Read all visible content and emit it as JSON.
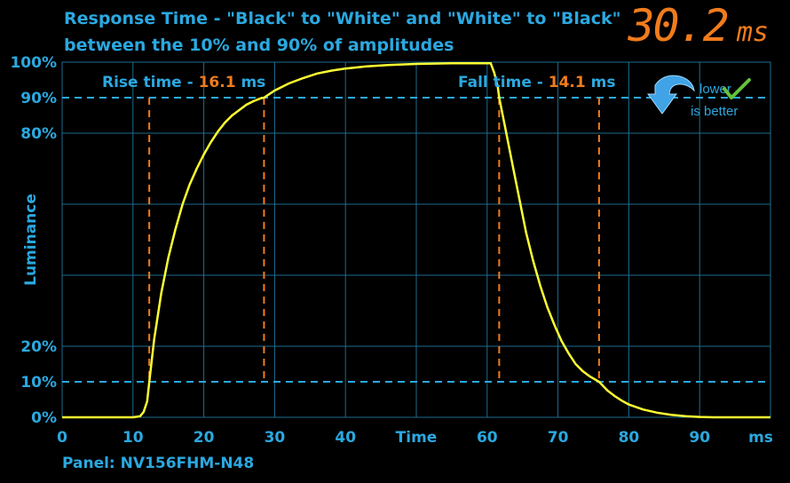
{
  "header": {
    "title_line1": "Response Time - \"Black\" to \"White\" and \"White\" to \"Black\"",
    "title_line2": "between the 10% and 90% of amplitudes",
    "big_value": "30.2",
    "big_unit": "ms"
  },
  "footer": {
    "panel": "Panel: NV156FHM-N48"
  },
  "badge": {
    "line1": "lower",
    "line2": "is better"
  },
  "colors": {
    "accent": "#2ba8e0",
    "orange": "#f07c1c",
    "curve": "#ffff33",
    "grid": "#1c6d91",
    "green": "#63c23a"
  },
  "chart_data": {
    "type": "line",
    "xlabel": "Time",
    "x_unit": "ms",
    "ylabel": "Luminance",
    "xlim": [
      0,
      100
    ],
    "ylim": [
      0,
      100
    ],
    "x_ticks": [
      0,
      10,
      20,
      30,
      40,
      60,
      70,
      80,
      90
    ],
    "y_ticks": [
      {
        "value": 0,
        "label": "0%"
      },
      {
        "value": 10,
        "label": "10%"
      },
      {
        "value": 20,
        "label": "20%"
      },
      {
        "value": 80,
        "label": "80%"
      },
      {
        "value": 90,
        "label": "90%"
      },
      {
        "value": 100,
        "label": "100%"
      }
    ],
    "grid": true,
    "threshold_lines": [
      10,
      90
    ],
    "rise": {
      "label": "Rise time - ",
      "value": "16.1",
      "unit": " ms",
      "start": 12.3,
      "end": 28.5
    },
    "fall": {
      "label": "Fall time - ",
      "value": "14.1",
      "unit": " ms",
      "start": 61.7,
      "end": 75.8
    },
    "series": [
      {
        "x": [
          0,
          10,
          11,
          11.5,
          12,
          12.3,
          13,
          14,
          15,
          16,
          17,
          18,
          19,
          20,
          21,
          22,
          23,
          24,
          25,
          26,
          27,
          28,
          28.5,
          30,
          32,
          34,
          36,
          38,
          40,
          43,
          46,
          50,
          55,
          60.5,
          61.0,
          61.5,
          61.7,
          62.5,
          63.5,
          64.5,
          65.5,
          66.5,
          67.5,
          68.5,
          69.5,
          70.5,
          71.5,
          72.5,
          73.5,
          74.5,
          75.8,
          77,
          78,
          79,
          80,
          82,
          84,
          86,
          88,
          90,
          92,
          95,
          100
        ],
        "y": [
          0,
          0,
          0.3,
          1.5,
          4.5,
          10,
          22,
          35,
          45,
          53,
          60,
          65.5,
          70,
          74,
          77.5,
          80.5,
          83,
          85,
          86.5,
          88,
          89,
          89.8,
          90,
          92,
          94,
          95.5,
          96.8,
          97.6,
          98.2,
          98.8,
          99.2,
          99.5,
          99.7,
          99.7,
          97,
          93,
          90,
          82,
          72,
          62,
          52,
          44,
          37,
          31,
          26,
          21.5,
          18,
          15,
          13,
          11.5,
          10,
          7.5,
          6,
          4.7,
          3.6,
          2.2,
          1.3,
          0.7,
          0.3,
          0.1,
          0,
          0,
          0
        ]
      }
    ]
  }
}
